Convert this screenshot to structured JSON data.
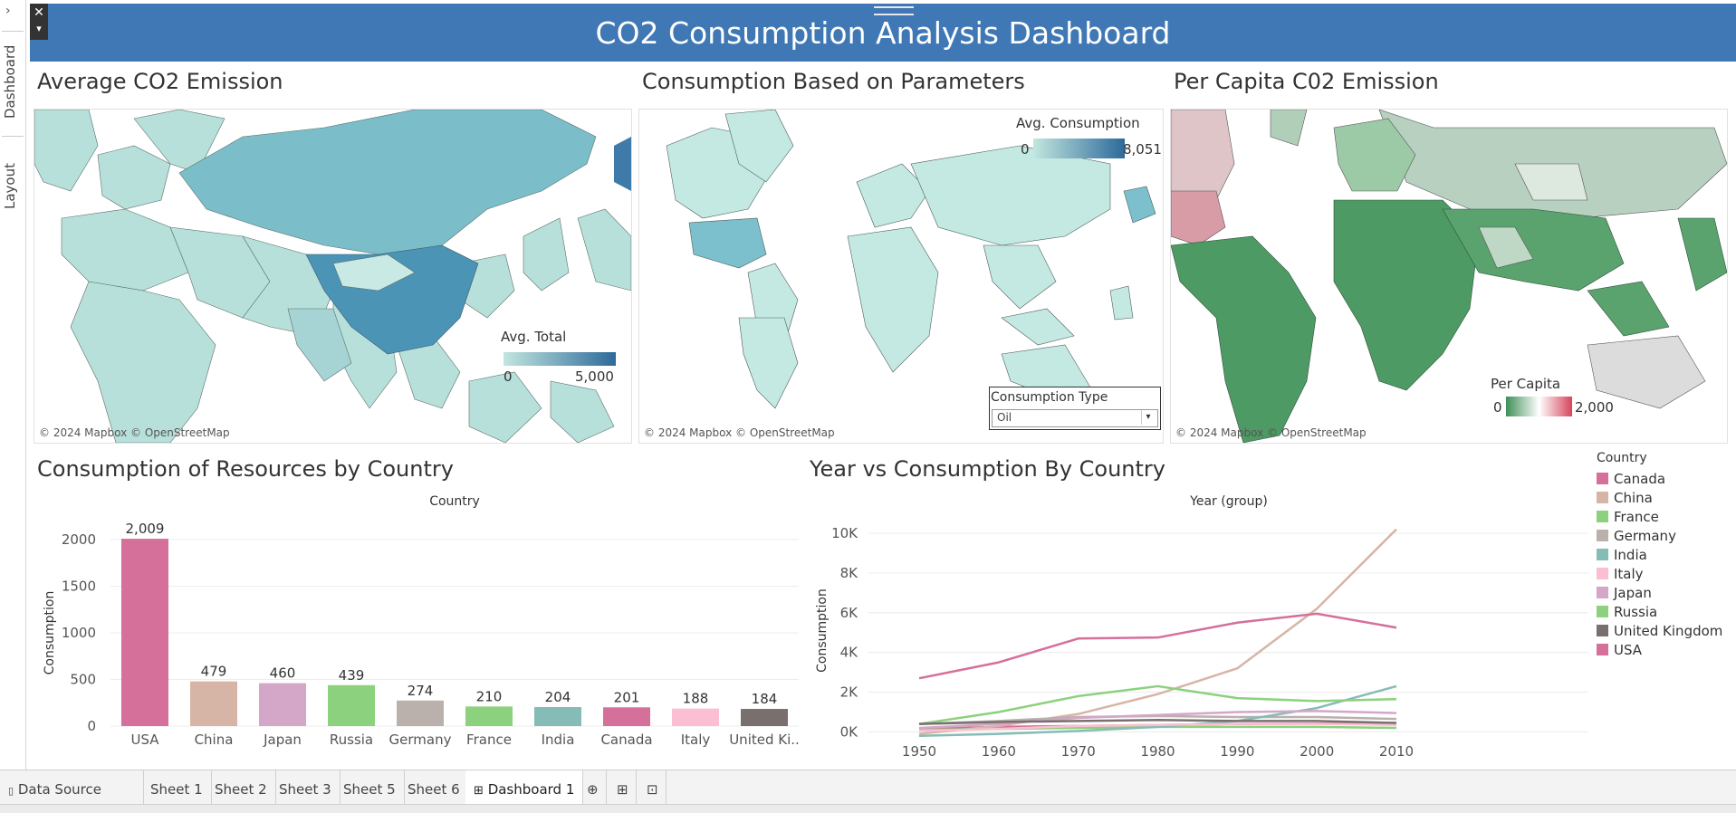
{
  "rail": {
    "dashboard_tab": "Dashboard",
    "layout_tab": "Layout",
    "expand_glyph": "›"
  },
  "header": {
    "title": "CO2 Consumption Analysis Dashboard",
    "close_glyph": "✕",
    "menu_glyph": "▾",
    "bg": "#3f78b5"
  },
  "map1": {
    "title": "Average CO2 Emission",
    "legend_title": "Avg. Total",
    "legend_min": "0",
    "legend_max": "5,000",
    "credit": "© 2024 Mapbox © OpenStreetMap"
  },
  "map2": {
    "title": "Consumption Based on Parameters",
    "legend_title": "Avg. Consumption",
    "legend_min": "0",
    "legend_max": "8,051",
    "credit": "© 2024 Mapbox © OpenStreetMap",
    "filter_title": "Consumption Type",
    "filter_value": "Oil"
  },
  "map3": {
    "title": "Per Capita C02 Emission",
    "legend_title": "Per Capita",
    "legend_min": "0",
    "legend_max": "2,000",
    "credit": "© 2024 Mapbox © OpenStreetMap"
  },
  "bar_panel": {
    "title": "Consumption of Resources by Country"
  },
  "line_panel": {
    "title": "Year vs Consumption By Country"
  },
  "legend": {
    "title": "Country",
    "items": [
      {
        "label": "Canada",
        "color": "#d4709a"
      },
      {
        "label": "China",
        "color": "#d7b5a6"
      },
      {
        "label": "France",
        "color": "#8cd17d"
      },
      {
        "label": "Germany",
        "color": "#bab0ac"
      },
      {
        "label": "India",
        "color": "#86bcb6"
      },
      {
        "label": "Italy",
        "color": "#fabfd2"
      },
      {
        "label": "Japan",
        "color": "#d4a6c8"
      },
      {
        "label": "Russia",
        "color": "#8cd17d"
      },
      {
        "label": "United Kingdom",
        "color": "#79706e"
      },
      {
        "label": "USA",
        "color": "#d4709a"
      }
    ]
  },
  "chart_data": [
    {
      "type": "bar",
      "title": "Country",
      "xlabel": "Country",
      "ylabel": "Consumption",
      "categories": [
        "USA",
        "China",
        "Japan",
        "Russia",
        "Germany",
        "France",
        "India",
        "Canada",
        "Italy",
        "United Ki.."
      ],
      "values": [
        2009,
        479,
        460,
        439,
        274,
        210,
        204,
        201,
        188,
        184
      ],
      "value_labels": [
        "2,009",
        "479",
        "460",
        "439",
        "274",
        "210",
        "204",
        "201",
        "188",
        "184"
      ],
      "colors": [
        "#d4709a",
        "#d7b5a6",
        "#d4a6c8",
        "#8cd17d",
        "#bab0ac",
        "#8cd17d",
        "#86bcb6",
        "#d4709a",
        "#fabfd2",
        "#79706e"
      ],
      "yticks": [
        0,
        500,
        1000,
        1500,
        2000
      ],
      "ylim": [
        0,
        2000
      ],
      "grid": true
    },
    {
      "type": "line",
      "title": "Year (group)",
      "xlabel": "Year (group)",
      "ylabel": "Consumption",
      "x": [
        1950,
        1960,
        1970,
        1980,
        1990,
        2000,
        2010
      ],
      "yticks": [
        0,
        2000,
        4000,
        6000,
        8000,
        10000
      ],
      "ytick_labels": [
        "0K",
        "2K",
        "4K",
        "6K",
        "8K",
        "10K"
      ],
      "ylim": [
        -300,
        10500
      ],
      "grid": true,
      "series": [
        {
          "name": "Canada",
          "color": "#d4709a",
          "values": [
            150,
            250,
            300,
            350,
            400,
            420,
            400
          ]
        },
        {
          "name": "China",
          "color": "#d7b5a6",
          "values": [
            -100,
            300,
            900,
            1900,
            3200,
            6200,
            10200
          ]
        },
        {
          "name": "France",
          "color": "#8cd17d",
          "values": [
            100,
            150,
            200,
            250,
            250,
            250,
            200
          ]
        },
        {
          "name": "Germany",
          "color": "#bab0ac",
          "values": [
            400,
            550,
            750,
            800,
            750,
            750,
            650
          ]
        },
        {
          "name": "India",
          "color": "#86bcb6",
          "values": [
            -200,
            -100,
            50,
            250,
            550,
            1200,
            2300
          ]
        },
        {
          "name": "Italy",
          "color": "#fabfd2",
          "values": [
            50,
            150,
            300,
            350,
            400,
            400,
            350
          ]
        },
        {
          "name": "Japan",
          "color": "#d4a6c8",
          "values": [
            200,
            400,
            700,
            850,
            1000,
            1050,
            950
          ]
        },
        {
          "name": "Russia",
          "color": "#8cd17d",
          "values": [
            400,
            1000,
            1800,
            2300,
            1700,
            1550,
            1650
          ]
        },
        {
          "name": "United Kingdom",
          "color": "#79706e",
          "values": [
            400,
            500,
            550,
            600,
            550,
            550,
            450
          ]
        },
        {
          "name": "USA",
          "color": "#d4709a",
          "values": [
            2700,
            3500,
            4700,
            4750,
            5500,
            5950,
            5250
          ]
        }
      ]
    }
  ],
  "tabs": {
    "data_source": "Data Source",
    "sheets": [
      "Sheet 1",
      "Sheet 2",
      "Sheet 3",
      "Sheet 5",
      "Sheet 6"
    ],
    "dashboard": "Dashboard 1"
  }
}
